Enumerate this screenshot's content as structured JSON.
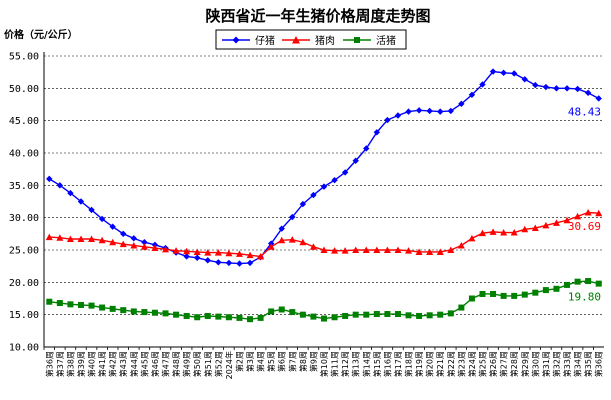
{
  "chart_data": {
    "type": "line",
    "title": "陕西省近一年生猪价格周度走势图",
    "ylabel": "价格（元/公斤）",
    "ylim": [
      10,
      55
    ],
    "yticks": [
      "10.00",
      "15.00",
      "20.00",
      "25.00",
      "30.00",
      "35.00",
      "40.00",
      "45.00",
      "50.00",
      "55.00"
    ],
    "grid": "horizontal",
    "legend_position": "top-center",
    "categories": [
      "第36周",
      "第37周",
      "第38周",
      "第39周",
      "第40周",
      "第41周",
      "第42周",
      "第43周",
      "第44周",
      "第45周",
      "第46周",
      "第47周",
      "第48周",
      "第49周",
      "第50周",
      "第51周",
      "第52周",
      "2024年",
      "第2周",
      "第3周",
      "第4周",
      "第5周",
      "第6周",
      "第7周",
      "第8周",
      "第9周",
      "第10周",
      "第11周",
      "第12周",
      "第13周",
      "第14周",
      "第15周",
      "第16周",
      "第17周",
      "第18周",
      "第19周",
      "第20周",
      "第21周",
      "第22周",
      "第23周",
      "第24周",
      "第25周",
      "第26周",
      "第27周",
      "第28周",
      "第29周",
      "第30周",
      "第31周",
      "第32周",
      "第33周",
      "第34周",
      "第35周",
      "第36周"
    ],
    "series": [
      {
        "name": "仔猪",
        "color": "#0000ff",
        "marker": "diamond",
        "end_label": "48.43",
        "values": [
          36.0,
          35.0,
          33.8,
          32.5,
          31.2,
          29.8,
          28.6,
          27.5,
          26.8,
          26.2,
          25.8,
          25.3,
          24.6,
          24.0,
          23.8,
          23.4,
          23.1,
          23.0,
          22.9,
          23.0,
          23.9,
          26.0,
          28.3,
          30.1,
          32.1,
          33.5,
          34.8,
          35.8,
          37.0,
          38.8,
          40.7,
          43.2,
          45.1,
          45.8,
          46.4,
          46.6,
          46.5,
          46.4,
          46.5,
          47.6,
          49.0,
          50.6,
          52.6,
          52.4,
          52.3,
          51.4,
          50.5,
          50.2,
          50.0,
          50.0,
          49.9,
          49.3,
          48.43
        ]
      },
      {
        "name": "猪肉",
        "color": "#ff0000",
        "marker": "triangle",
        "end_label": "30.69",
        "values": [
          27.0,
          26.9,
          26.7,
          26.7,
          26.7,
          26.5,
          26.2,
          25.9,
          25.7,
          25.5,
          25.3,
          25.1,
          24.9,
          24.8,
          24.7,
          24.6,
          24.6,
          24.5,
          24.4,
          24.2,
          24.0,
          25.5,
          26.5,
          26.6,
          26.2,
          25.5,
          25.0,
          24.9,
          24.9,
          25.0,
          25.0,
          25.0,
          25.0,
          25.0,
          24.9,
          24.7,
          24.7,
          24.7,
          25.0,
          25.7,
          26.8,
          27.6,
          27.8,
          27.7,
          27.7,
          28.2,
          28.4,
          28.8,
          29.2,
          29.6,
          30.2,
          30.8,
          30.69
        ]
      },
      {
        "name": "活猪",
        "color": "#008000",
        "marker": "square",
        "end_label": "19.80",
        "values": [
          17.0,
          16.8,
          16.6,
          16.5,
          16.4,
          16.1,
          15.9,
          15.7,
          15.5,
          15.4,
          15.3,
          15.2,
          15.0,
          14.8,
          14.6,
          14.8,
          14.7,
          14.6,
          14.5,
          14.3,
          14.5,
          15.5,
          15.8,
          15.4,
          15.0,
          14.7,
          14.4,
          14.6,
          14.8,
          15.0,
          15.0,
          15.1,
          15.1,
          15.1,
          14.9,
          14.8,
          14.9,
          15.0,
          15.2,
          16.1,
          17.5,
          18.2,
          18.2,
          17.9,
          17.9,
          18.1,
          18.4,
          18.8,
          19.0,
          19.6,
          20.1,
          20.2,
          19.8
        ]
      }
    ]
  }
}
